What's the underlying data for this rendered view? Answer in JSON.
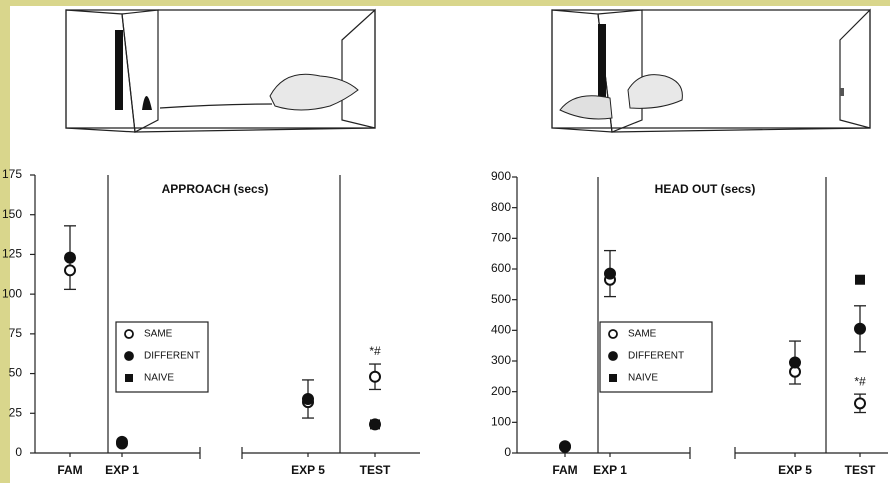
{
  "chart_data": [
    {
      "type": "scatter",
      "title": "APPROACH (secs)",
      "categories": [
        "FAM",
        "EXP 1",
        "EXP 5",
        "TEST"
      ],
      "series": [
        {
          "name": "SAME",
          "marker": "open-circle",
          "color": "#111111",
          "values": [
            115,
            6,
            32,
            48
          ],
          "errors": [
            null,
            null,
            null,
            8
          ]
        },
        {
          "name": "DIFFERENT",
          "marker": "circle",
          "color": "#111111",
          "values": [
            123,
            7,
            34,
            18
          ],
          "errors": [
            20,
            null,
            12,
            null
          ]
        },
        {
          "name": "NAIVE",
          "marker": "square",
          "color": "#111111",
          "values": [
            null,
            null,
            null,
            18
          ],
          "errors": [
            null,
            null,
            null,
            null
          ]
        }
      ],
      "annotations": [
        {
          "text": "*#",
          "series": 0,
          "index": 3
        }
      ],
      "ylim": [
        0,
        175
      ],
      "yticks": [
        0,
        25,
        50,
        75,
        100,
        125,
        150,
        175
      ]
    },
    {
      "type": "scatter",
      "title": "HEAD  OUT (secs)",
      "categories": [
        "FAM",
        "EXP 1",
        "EXP 5",
        "TEST"
      ],
      "series": [
        {
          "name": "SAME",
          "marker": "open-circle",
          "color": "#111111",
          "values": [
            20,
            565,
            265,
            162
          ],
          "errors": [
            null,
            null,
            null,
            30
          ]
        },
        {
          "name": "DIFFERENT",
          "marker": "circle",
          "color": "#111111",
          "values": [
            22,
            585,
            295,
            405
          ],
          "errors": [
            null,
            75,
            70,
            75
          ]
        },
        {
          "name": "NAIVE",
          "marker": "square",
          "color": "#111111",
          "values": [
            null,
            null,
            null,
            565
          ],
          "errors": [
            null,
            null,
            null,
            null
          ]
        }
      ],
      "annotations": [
        {
          "text": "*#",
          "series": 0,
          "index": 3
        }
      ],
      "ylim": [
        0,
        900
      ],
      "yticks": [
        0,
        100,
        200,
        300,
        400,
        500,
        600,
        700,
        800,
        900
      ]
    }
  ]
}
